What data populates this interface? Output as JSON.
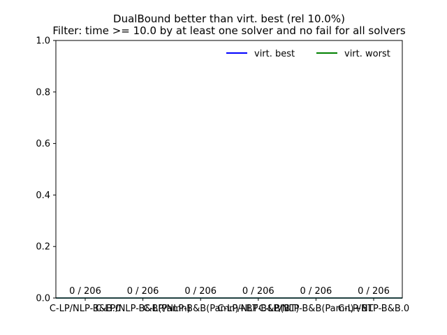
{
  "chart_data": {
    "type": "line",
    "title": "DualBound better than virt. best (rel 10.0%)",
    "subtitle": "Filter: time >= 10.0 by at least one solver and no fail for all solvers",
    "categories": [
      "C-LP/NLP-B&B.0",
      "C-LP/NLP-B&B(Pamn)",
      "C-LP/NLP-B&B(Pamn)+BT",
      "C-LP/NLP-B&B(BT)",
      "C-LP/NLP-B&B(Pamn)+BT",
      "C-LP/NLP-B&B.0"
    ],
    "xlabel": "",
    "ylabel": "",
    "ylim": [
      0,
      1.0
    ],
    "yticks": [
      0.0,
      0.2,
      0.4,
      0.6,
      0.8,
      1.0
    ],
    "ytick_labels": [
      "0.0",
      "0.2",
      "0.4",
      "0.6",
      "0.8",
      "1.0"
    ],
    "series": [
      {
        "name": "virt. best",
        "color": "#0000ff",
        "values": [
          0,
          0,
          0,
          0,
          0,
          0
        ]
      },
      {
        "name": "virt. worst",
        "color": "#008000",
        "values": [
          0,
          0,
          0,
          0,
          0,
          0
        ]
      }
    ],
    "data_labels": [
      "0 / 206",
      "0 / 206",
      "0 / 206",
      "0 / 206",
      "0 / 206",
      "0 / 206"
    ],
    "legend_position": "top-right",
    "grid": false
  }
}
